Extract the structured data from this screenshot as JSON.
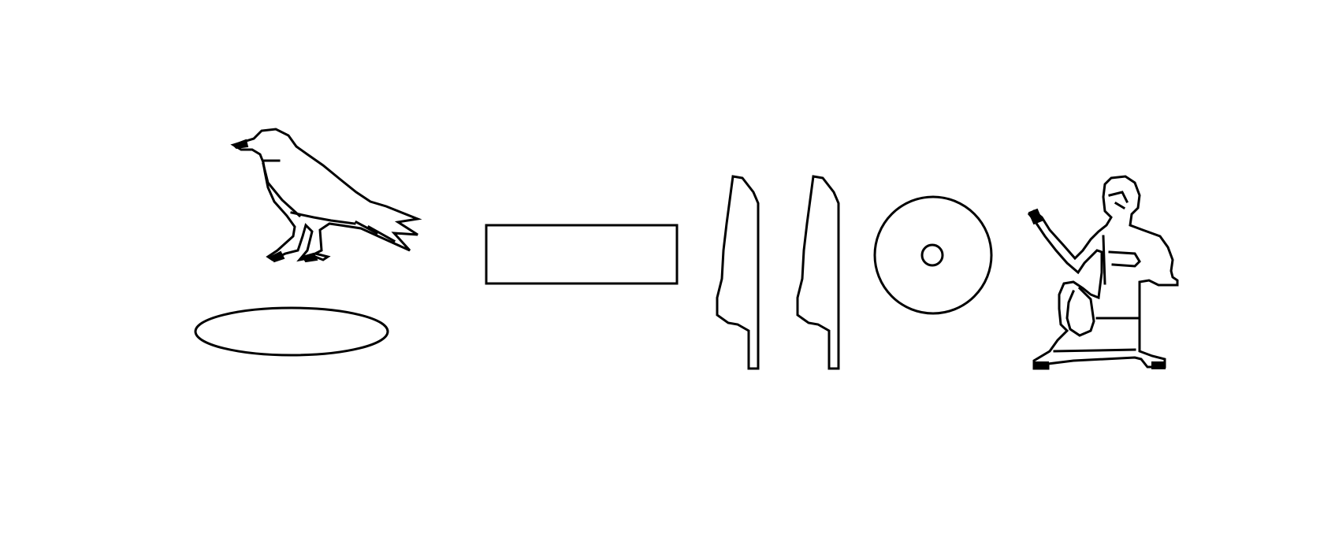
{
  "glyphs": [
    {
      "name": "vulture-bird",
      "icon": "bird-hieroglyph-icon"
    },
    {
      "name": "pool-oval",
      "icon": "oval-hieroglyph-icon"
    },
    {
      "name": "stool-rectangle",
      "icon": "rectangle-hieroglyph-icon"
    },
    {
      "name": "reed-leaf-1",
      "icon": "reed-leaf-hieroglyph-icon"
    },
    {
      "name": "reed-leaf-2",
      "icon": "reed-leaf-hieroglyph-icon"
    },
    {
      "name": "sun-disc",
      "icon": "sun-disc-hieroglyph-icon"
    },
    {
      "name": "seated-man",
      "icon": "seated-man-hieroglyph-icon"
    }
  ],
  "colors": {
    "background": "#ffffff",
    "ink": "#000000"
  }
}
